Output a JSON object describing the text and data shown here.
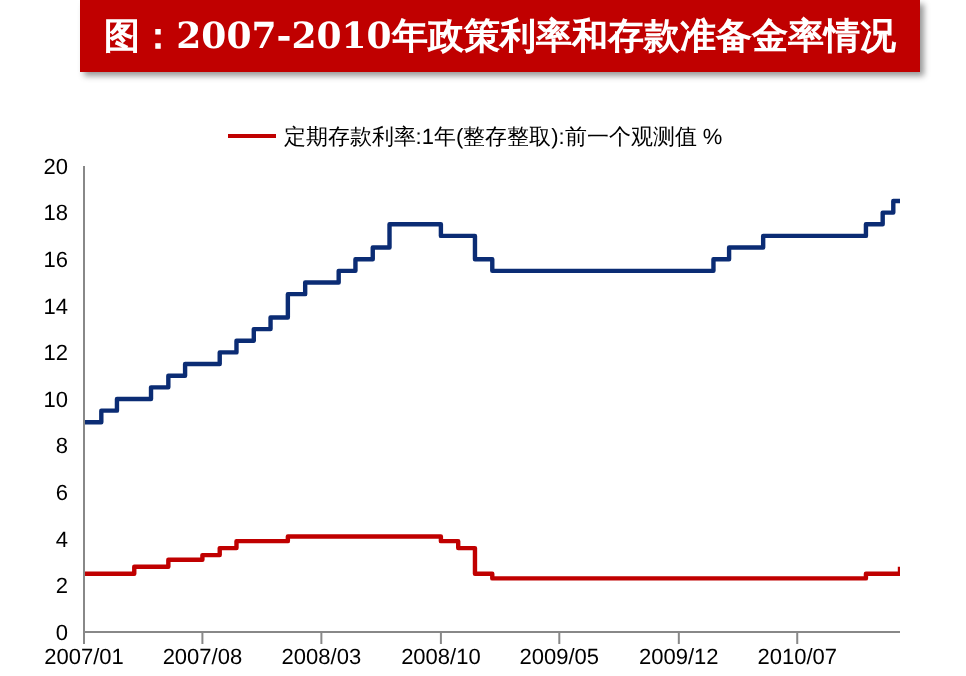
{
  "chart_data": {
    "type": "step",
    "title": "图：2007-2010年政策利率和存款准备金率情况",
    "series": [
      {
        "color": "#0b2c74",
        "x": [
          "2007-01",
          "2007-02",
          "2007-03",
          "2007-05",
          "2007-06",
          "2007-07",
          "2007-09",
          "2007-10",
          "2007-11",
          "2007-12",
          "2008-01",
          "2008-02",
          "2008-04",
          "2008-05",
          "2008-06",
          "2008-07",
          "2008-10",
          "2008-12",
          "2009-01",
          "2010-02",
          "2010-03",
          "2010-05",
          "2010-11",
          "2010-12",
          "2010-12-20",
          "2011-01"
        ],
        "values": [
          9,
          9.5,
          10,
          10.5,
          11,
          11.5,
          12,
          12.5,
          13,
          13.5,
          14.5,
          15,
          15.5,
          16,
          16.5,
          17.5,
          17,
          16,
          15.5,
          16,
          16.5,
          17,
          17.5,
          18,
          18.5,
          18.5
        ]
      },
      {
        "name": "定期存款利率:1年(整存整取):前一个观测值 %",
        "color": "#c00000",
        "x": [
          "2007-01",
          "2007-04",
          "2007-06",
          "2007-08",
          "2007-09",
          "2007-10",
          "2008-01",
          "2008-10",
          "2008-11",
          "2008-12",
          "2009-01",
          "2010-11",
          "2011-01"
        ],
        "values": [
          2.5,
          2.8,
          3.1,
          3.3,
          3.6,
          3.9,
          4.1,
          3.9,
          3.6,
          2.5,
          2.3,
          2.5,
          2.8
        ]
      }
    ],
    "xlim": [
      "2007-01",
      "2011-01"
    ],
    "xticks": [
      {
        "value": "2007-01",
        "label": "2007/01"
      },
      {
        "value": "2007-08",
        "label": "2007/08"
      },
      {
        "value": "2008-03",
        "label": "2008/03"
      },
      {
        "value": "2008-10",
        "label": "2008/10"
      },
      {
        "value": "2009-05",
        "label": "2009/05"
      },
      {
        "value": "2009-12",
        "label": "2009/12"
      },
      {
        "value": "2010-07",
        "label": "2010/07"
      }
    ],
    "ylim": [
      0,
      20
    ],
    "yticks": [
      0,
      2,
      4,
      6,
      8,
      10,
      12,
      14,
      16,
      18,
      20
    ],
    "grid": false,
    "legend": "top",
    "marker": "none",
    "line_style": "solid"
  }
}
